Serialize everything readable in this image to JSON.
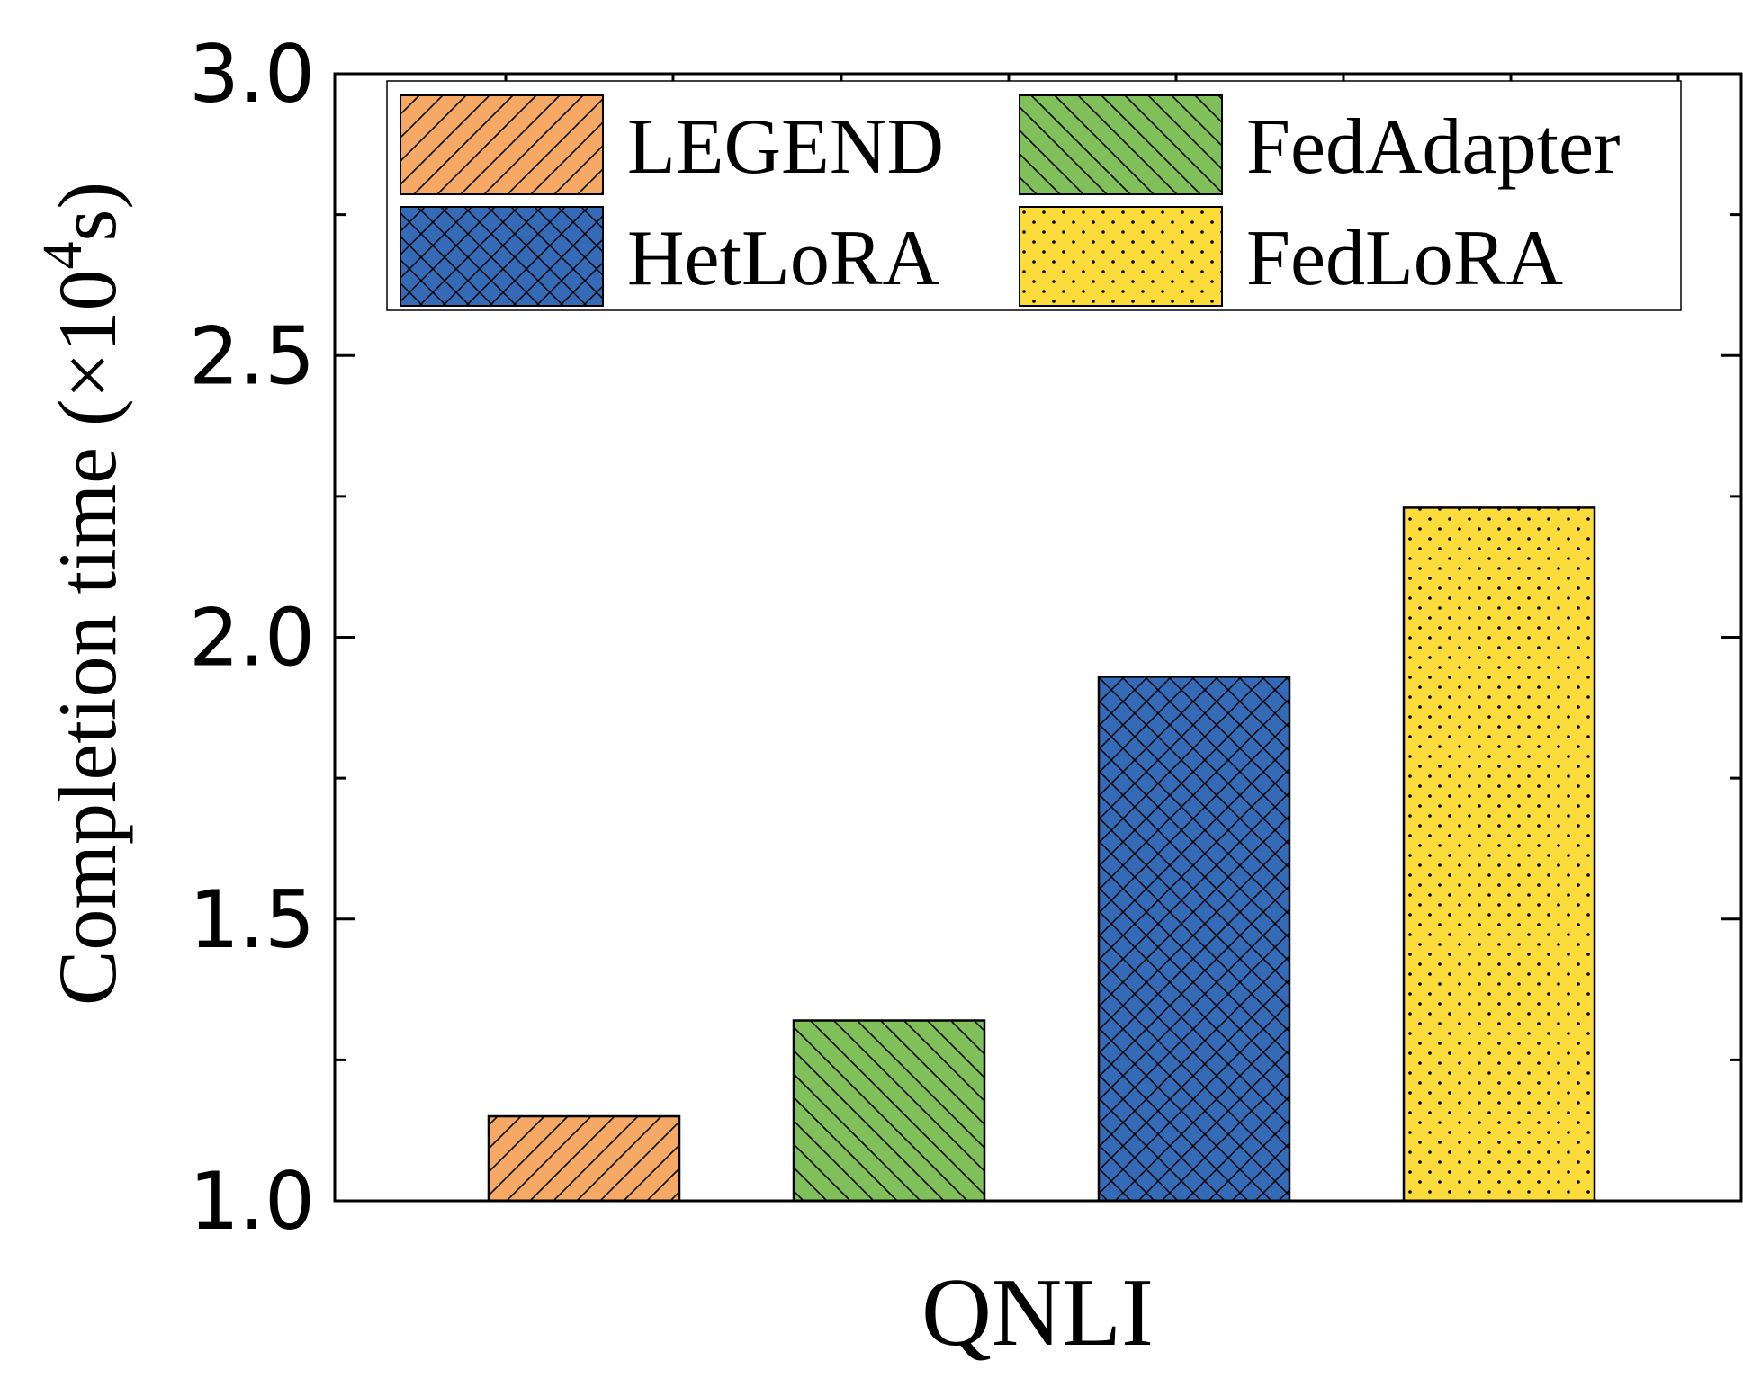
{
  "chart_data": {
    "type": "bar",
    "categories": [
      "QNLI"
    ],
    "series": [
      {
        "name": "LEGEND",
        "values": [
          1.15
        ],
        "color": "#f5a964",
        "pattern": "diagonal-forward"
      },
      {
        "name": "FedAdapter",
        "values": [
          1.32
        ],
        "color": "#80c05a",
        "pattern": "diagonal-back"
      },
      {
        "name": "HetLoRA",
        "values": [
          1.93
        ],
        "color": "#356ab6",
        "pattern": "crosshatch"
      },
      {
        "name": "FedLoRA",
        "values": [
          2.23
        ],
        "color": "#fbdc3a",
        "pattern": "dots"
      }
    ],
    "ylabel_main": "Completion time (×10",
    "ylabel_sup": "4",
    "ylabel_end": "s)",
    "ylim": [
      1.0,
      3.0
    ],
    "yticks": [
      "1.0",
      "1.5",
      "2.0",
      "2.5",
      "3.0"
    ],
    "legend_placement": "top",
    "grid": false
  }
}
